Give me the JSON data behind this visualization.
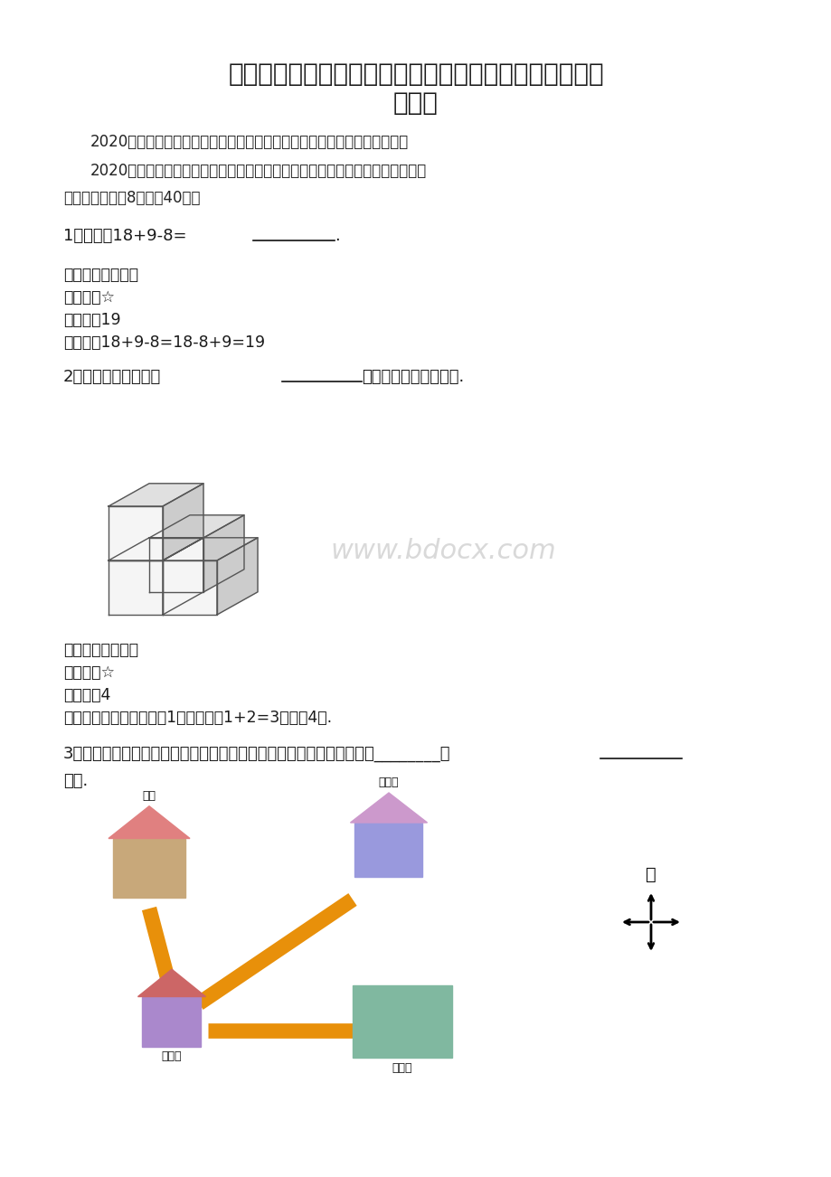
{
  "bg_color": "#ffffff",
  "title_line1": "人教版小学一年级数学下册期末综合能力测试及答案含详",
  "title_line2": "细解析",
  "subtitle1": "2020年人教版小学一年级数学下册期末综合能力测试及答案（含详细解析）",
  "subtitle2_line1": "2020年人教版小学一年级数学下册期末综合能力测试及答案（含详细解析）一、",
  "subtitle2_line2": "基础过关（每题8分，共40分）",
  "q1_text": "1．计算：18+9-8=________.",
  "q1_kp": "【考点】凑整巧算",
  "q1_nd": "【难度】☆",
  "q1_da": "【答案】19",
  "q1_jx": "【解析】18+9-8=18-8+9=19",
  "q2_text": "2．数一数，下图是由________块正方体小方块堆成的.",
  "q2_kp": "【考点】几何计数",
  "q2_nd": "【难度】☆",
  "q2_da": "【答案】4",
  "q2_jx": "【解析】分层计算第一层1块，第二层1+2=3块，共4块.",
  "q3_text_line1": "3．如图，小敏想去找凡凡玩耍，那么小敏从自己家出发到凡凡家应该朝________方",
  "q3_text_line2": "向走.",
  "watermark": "www.bdocx.com",
  "road_color": "#E8900A",
  "road_lw": 12,
  "compass_north": "北"
}
